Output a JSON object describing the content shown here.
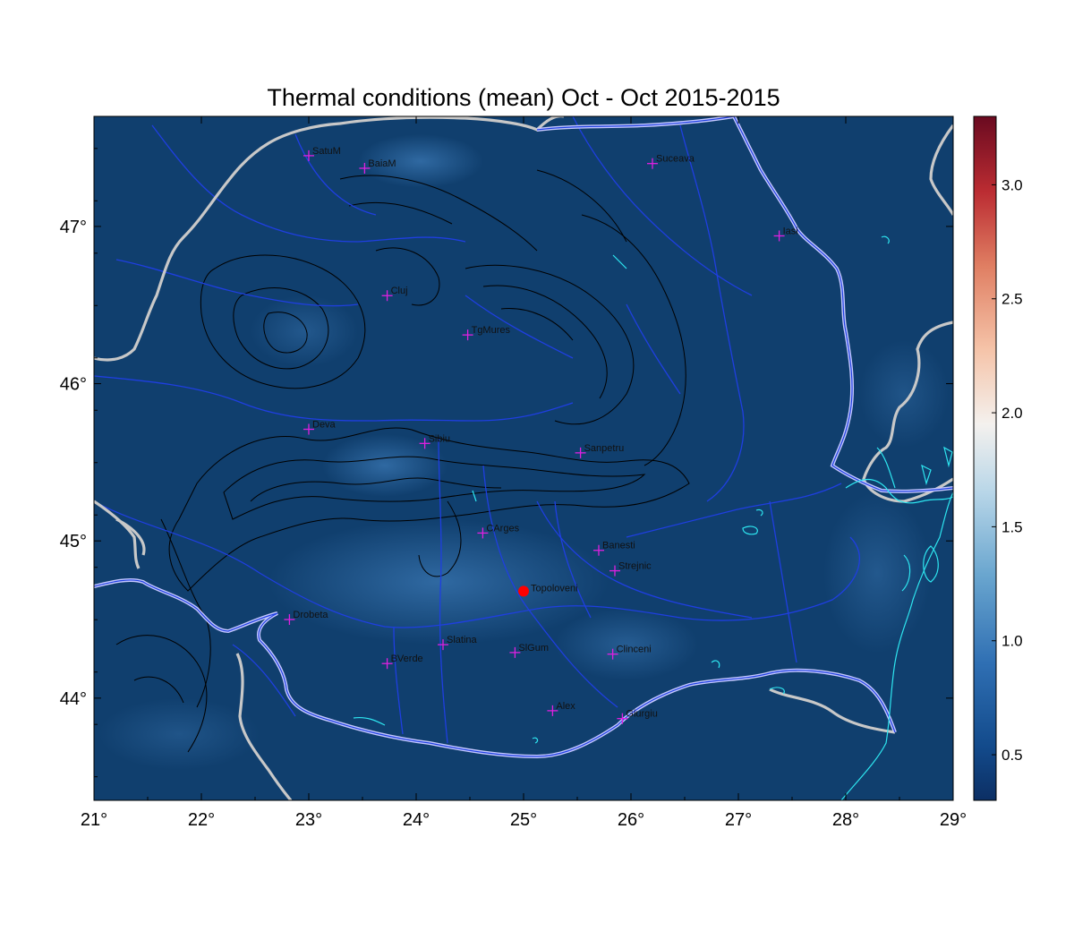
{
  "map": {
    "title": "Thermal conditions (mean) Oct - Oct  2015-2015",
    "lon_range": [
      21,
      29
    ],
    "lat_range": [
      43.35,
      47.7
    ],
    "lon_ticks": [
      "21°",
      "22°",
      "23°",
      "24°",
      "25°",
      "26°",
      "27°",
      "28°",
      "29°"
    ],
    "lat_ticks": [
      "44°",
      "45°",
      "46°",
      "47°"
    ],
    "colorbar": {
      "range": [
        0.3,
        3.3
      ],
      "colormap": "RdBu_r",
      "ticks": [
        "0.5",
        "1.0",
        "1.5",
        "2.0",
        "2.5",
        "3.0"
      ]
    },
    "colors": {
      "background_field": "#103f6e",
      "rivers": "#1f3fe0",
      "borders": "#c8c8c8",
      "romania_border": "#c4c8ff",
      "water_bodies": "#2ee6f0",
      "contours": "#000000",
      "station_marker": "#e020e0",
      "highlight_marker": "#ff0000"
    },
    "stations": [
      {
        "name": "SatuM",
        "lon": 23.0,
        "lat": 47.45
      },
      {
        "name": "BaiaM",
        "lon": 23.52,
        "lat": 47.37
      },
      {
        "name": "Suceava",
        "lon": 26.2,
        "lat": 47.4
      },
      {
        "name": "Iasi",
        "lon": 27.38,
        "lat": 46.94
      },
      {
        "name": "Cluj",
        "lon": 23.73,
        "lat": 46.56
      },
      {
        "name": "TgMures",
        "lon": 24.48,
        "lat": 46.31
      },
      {
        "name": "Deva",
        "lon": 23.0,
        "lat": 45.71
      },
      {
        "name": "Sibiu",
        "lon": 24.08,
        "lat": 45.62
      },
      {
        "name": "Sanpetru",
        "lon": 25.53,
        "lat": 45.56
      },
      {
        "name": "CArges",
        "lon": 24.62,
        "lat": 45.05
      },
      {
        "name": "Banesti",
        "lon": 25.7,
        "lat": 44.94
      },
      {
        "name": "Strejnic",
        "lon": 25.85,
        "lat": 44.81
      },
      {
        "name": "Drobeta",
        "lon": 22.82,
        "lat": 44.5
      },
      {
        "name": "Slatina",
        "lon": 24.25,
        "lat": 44.34
      },
      {
        "name": "SlGum",
        "lon": 24.92,
        "lat": 44.29
      },
      {
        "name": "Clinceni",
        "lon": 25.83,
        "lat": 44.28
      },
      {
        "name": "BVerde",
        "lon": 23.73,
        "lat": 44.22
      },
      {
        "name": "Alex",
        "lon": 25.27,
        "lat": 43.92
      },
      {
        "name": "Giurgiu",
        "lon": 25.92,
        "lat": 43.87
      }
    ],
    "highlight_station": {
      "name": "Topoloveni",
      "lon": 25.0,
      "lat": 44.68
    }
  }
}
